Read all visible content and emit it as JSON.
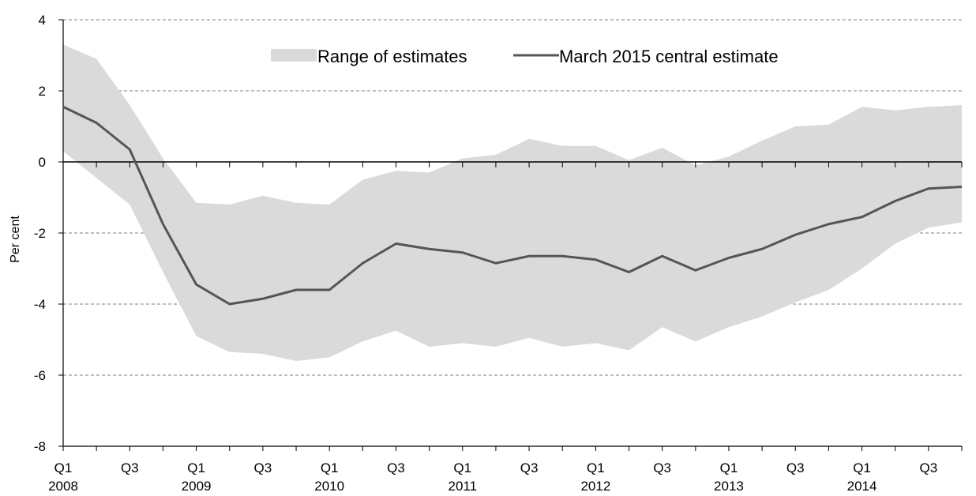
{
  "chart_data": {
    "type": "area",
    "title": "",
    "xlabel": "",
    "ylabel": "Per cent",
    "ylim": [
      -8,
      4
    ],
    "yticks": [
      4,
      2,
      0,
      -2,
      -4,
      -6,
      -8
    ],
    "grid": true,
    "legend_position": "top",
    "x": [
      "Q1 2008",
      "Q2 2008",
      "Q3 2008",
      "Q4 2008",
      "Q1 2009",
      "Q2 2009",
      "Q3 2009",
      "Q4 2009",
      "Q1 2010",
      "Q2 2010",
      "Q3 2010",
      "Q4 2010",
      "Q1 2011",
      "Q2 2011",
      "Q3 2011",
      "Q4 2011",
      "Q1 2012",
      "Q2 2012",
      "Q3 2012",
      "Q4 2012",
      "Q1 2013",
      "Q2 2013",
      "Q3 2013",
      "Q4 2013",
      "Q1 2014",
      "Q2 2014",
      "Q3 2014",
      "Q4 2014"
    ],
    "x_tick_labels": [
      {
        "quarter": "Q1",
        "year": "2008"
      },
      {
        "quarter": "Q3",
        "year": ""
      },
      {
        "quarter": "Q1",
        "year": "2009"
      },
      {
        "quarter": "Q3",
        "year": ""
      },
      {
        "quarter": "Q1",
        "year": "2010"
      },
      {
        "quarter": "Q3",
        "year": ""
      },
      {
        "quarter": "Q1",
        "year": "2011"
      },
      {
        "quarter": "Q3",
        "year": ""
      },
      {
        "quarter": "Q1",
        "year": "2012"
      },
      {
        "quarter": "Q3",
        "year": ""
      },
      {
        "quarter": "Q1",
        "year": "2013"
      },
      {
        "quarter": "Q3",
        "year": ""
      },
      {
        "quarter": "Q1",
        "year": "2014"
      },
      {
        "quarter": "Q3",
        "year": ""
      }
    ],
    "series": [
      {
        "name": "Range of estimates",
        "kind": "band",
        "color": "#dadada",
        "upper": [
          3.3,
          2.9,
          1.6,
          0.1,
          -1.15,
          -1.2,
          -0.95,
          -1.15,
          -1.2,
          -0.5,
          -0.25,
          -0.3,
          0.1,
          0.2,
          0.65,
          0.45,
          0.45,
          0.05,
          0.4,
          -0.1,
          0.15,
          0.6,
          1.0,
          1.05,
          1.55,
          1.45,
          1.55,
          1.6
        ],
        "lower": [
          0.3,
          -0.45,
          -1.2,
          -3.1,
          -4.9,
          -5.35,
          -5.4,
          -5.6,
          -5.5,
          -5.05,
          -4.75,
          -5.2,
          -5.1,
          -5.2,
          -4.95,
          -5.2,
          -5.1,
          -5.3,
          -4.65,
          -5.05,
          -4.65,
          -4.35,
          -3.95,
          -3.6,
          -3.0,
          -2.3,
          -1.85,
          -1.7
        ]
      },
      {
        "name": "March 2015 central estimate",
        "kind": "line",
        "color": "#555555",
        "values": [
          1.55,
          1.1,
          0.35,
          -1.75,
          -3.45,
          -4.0,
          -3.85,
          -3.6,
          -3.6,
          -2.85,
          -2.3,
          -2.45,
          -2.55,
          -2.85,
          -2.65,
          -2.65,
          -2.75,
          -3.1,
          -2.65,
          -3.05,
          -2.7,
          -2.45,
          -2.05,
          -1.75,
          -1.55,
          -1.1,
          -0.75,
          -0.7
        ]
      }
    ]
  }
}
